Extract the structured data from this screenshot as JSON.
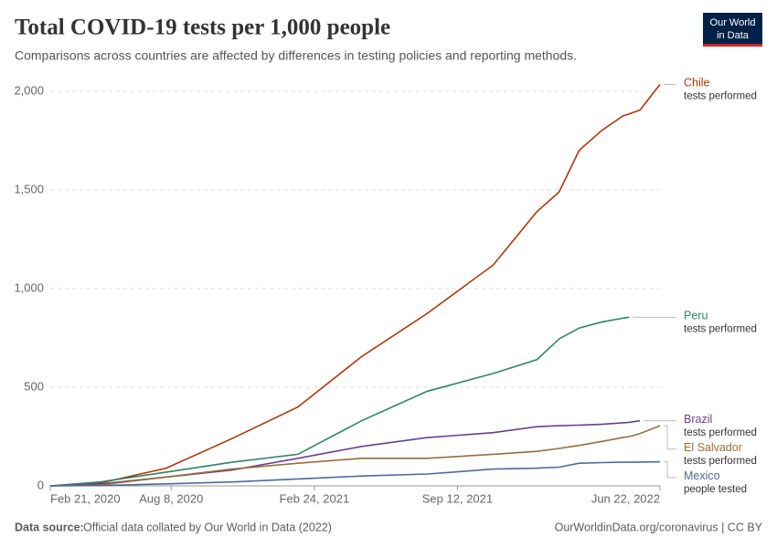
{
  "chart_data": {
    "type": "line",
    "title": "Total COVID-19 tests per 1,000 people",
    "subtitle": "Comparisons across countries are affected by differences in testing policies and reporting methods.",
    "logo": [
      "Our World",
      "in Data"
    ],
    "source_label": "Data source:",
    "source": "Official data collated by Our World in Data (2022)",
    "url": "OurWorldinData.org/coronavirus | CC BY",
    "x": [
      "2020-02-21",
      "2020-05-01",
      "2020-08-01",
      "2020-11-01",
      "2021-02-01",
      "2021-05-01",
      "2021-08-01",
      "2021-11-01",
      "2022-01-01",
      "2022-02-01",
      "2022-03-01",
      "2022-04-01",
      "2022-05-01",
      "2022-05-10",
      "2022-05-25",
      "2022-06-22"
    ],
    "xlim": [
      "2020-02-21",
      "2022-06-22"
    ],
    "xticks": [
      {
        "value": "2020-02-21",
        "label": "Feb 21, 2020"
      },
      {
        "value": "2020-08-08",
        "label": "Aug 8, 2020"
      },
      {
        "value": "2021-02-24",
        "label": "Feb 24, 2021"
      },
      {
        "value": "2021-09-12",
        "label": "Sep 12, 2021"
      },
      {
        "value": "2022-06-22",
        "label": "Jun 22, 2022"
      }
    ],
    "ylim": [
      0,
      2000
    ],
    "yticks": [
      0,
      500,
      {
        "value": 1000,
        "label": "1,000"
      },
      {
        "value": 1500,
        "label": "1,500"
      },
      {
        "value": 2000,
        "label": "2,000"
      }
    ],
    "grid": true,
    "series": [
      {
        "name": "Chile",
        "note": "tests performed",
        "color": "#b13507",
        "values": [
          0,
          15,
          90,
          240,
          400,
          655,
          875,
          1120,
          1390,
          1490,
          1700,
          1800,
          1875,
          1885,
          1905,
          2035
        ]
      },
      {
        "name": "Peru",
        "note": "tests performed",
        "color": "#2c8465",
        "values": [
          0,
          20,
          70,
          120,
          160,
          330,
          480,
          570,
          640,
          745,
          800,
          830,
          850,
          855,
          null,
          null
        ]
      },
      {
        "name": "Brazil",
        "note": "tests performed",
        "color": "#6d3e91",
        "values": [
          0,
          10,
          45,
          80,
          140,
          200,
          245,
          270,
          300,
          305,
          308,
          312,
          320,
          322,
          330,
          null
        ]
      },
      {
        "name": "El Salvador",
        "note": "tests performed",
        "color": "#996d39",
        "values": [
          0,
          5,
          45,
          85,
          115,
          140,
          140,
          160,
          175,
          190,
          205,
          225,
          245,
          250,
          265,
          305
        ]
      },
      {
        "name": "Mexico",
        "note": "people tested",
        "color": "#4c6a9c",
        "values": [
          0,
          2,
          10,
          20,
          35,
          50,
          60,
          85,
          90,
          95,
          115,
          118,
          120,
          120,
          121,
          122
        ]
      }
    ]
  }
}
